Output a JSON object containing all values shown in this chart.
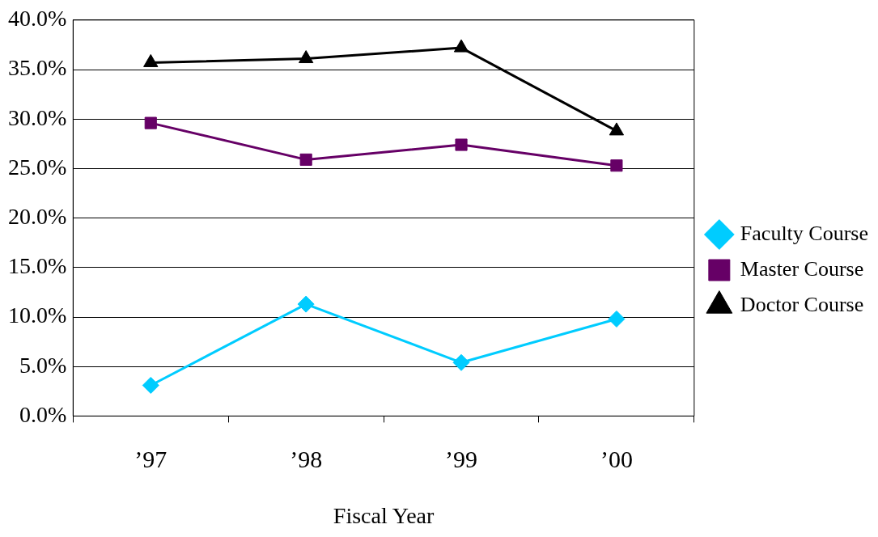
{
  "chart_data": {
    "type": "line",
    "xlabel": "Fiscal Year",
    "categories": [
      "’97",
      "’98",
      "’99",
      "’00"
    ],
    "series": [
      {
        "name": "Faculty Course",
        "color": "#00ccff",
        "marker": "diamond",
        "values": [
          3.1,
          11.3,
          5.4,
          9.8
        ]
      },
      {
        "name": "Master Course",
        "color": "#660066",
        "marker": "square",
        "values": [
          29.6,
          25.9,
          27.4,
          25.3
        ]
      },
      {
        "name": "Doctor Course",
        "color": "#000000",
        "marker": "triangle",
        "values": [
          35.7,
          36.1,
          37.2,
          28.8
        ]
      }
    ],
    "ylim": [
      0,
      40
    ],
    "yticks": [
      {
        "value": 0,
        "label": "0.0%"
      },
      {
        "value": 5,
        "label": "5.0%"
      },
      {
        "value": 10,
        "label": "10.0%"
      },
      {
        "value": 15,
        "label": "15.0%"
      },
      {
        "value": 20,
        "label": "20.0%"
      },
      {
        "value": 25,
        "label": "25.0%"
      },
      {
        "value": 30,
        "label": "30.0%"
      },
      {
        "value": 35,
        "label": "35.0%"
      },
      {
        "value": 40,
        "label": "40.0%"
      }
    ],
    "grid": "y",
    "legend": "right",
    "line_style": "solid"
  }
}
